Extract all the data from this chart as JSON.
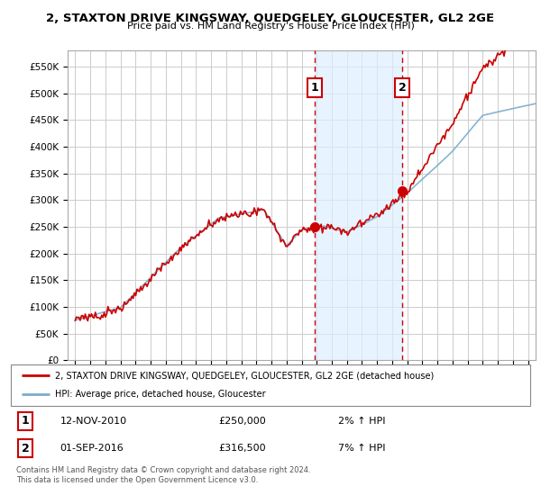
{
  "title": "2, STAXTON DRIVE KINGSWAY, QUEDGELEY, GLOUCESTER, GL2 2GE",
  "subtitle": "Price paid vs. HM Land Registry's House Price Index (HPI)",
  "legend_line1": "2, STAXTON DRIVE KINGSWAY, QUEDGELEY, GLOUCESTER, GL2 2GE (detached house)",
  "legend_line2": "HPI: Average price, detached house, Gloucester",
  "annotation1_date": "12-NOV-2010",
  "annotation1_price": "£250,000",
  "annotation1_hpi": "2% ↑ HPI",
  "annotation2_date": "01-SEP-2016",
  "annotation2_price": "£316,500",
  "annotation2_hpi": "7% ↑ HPI",
  "footnote1": "Contains HM Land Registry data © Crown copyright and database right 2024.",
  "footnote2": "This data is licensed under the Open Government Licence v3.0.",
  "price_color": "#cc0000",
  "hpi_color": "#7aaccc",
  "hpi_fill_color": "#ddeeff",
  "ylim_min": 0,
  "ylim_max": 580000,
  "background_color": "#ffffff",
  "grid_color": "#cccccc",
  "purchase1_year": 2010.87,
  "purchase1_value": 250000,
  "purchase2_year": 2016.67,
  "purchase2_value": 316500
}
